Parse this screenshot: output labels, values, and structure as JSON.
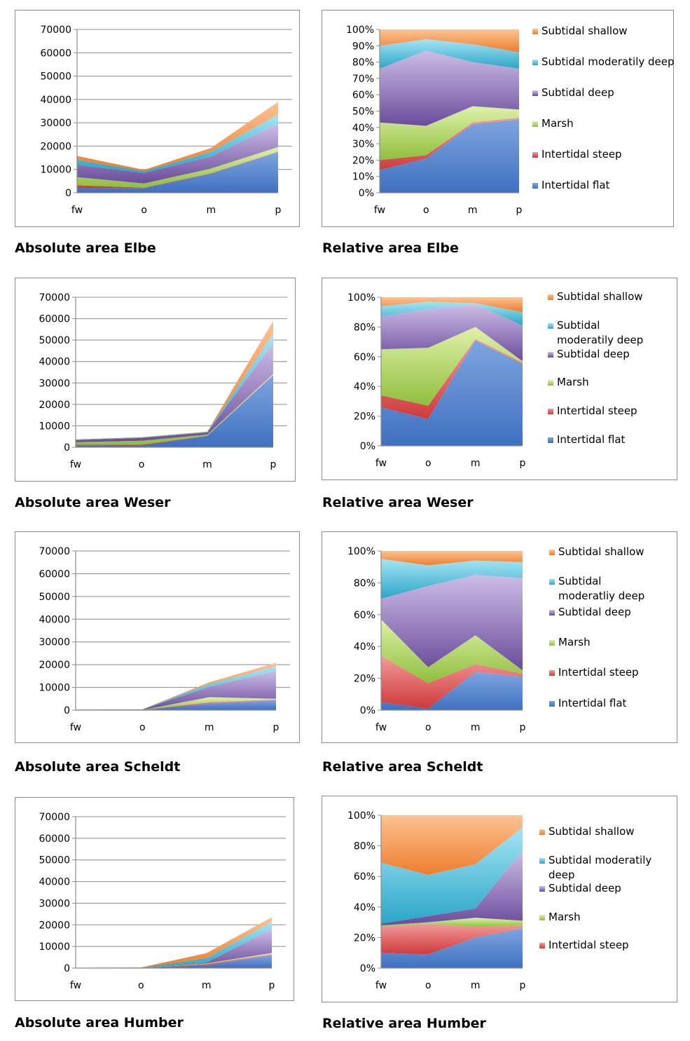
{
  "colors": {
    "Intertidal flat": [
      "#7fa5e0",
      "#3f70c0"
    ],
    "Intertidal steep": [
      "#f29a9a",
      "#cf3a3a"
    ],
    "Marsh": [
      "#dff0a8",
      "#8ebf3d"
    ],
    "Subtidal deep": [
      "#cdbde6",
      "#6a4c9c"
    ],
    "Subtidal moderatily deep": [
      "#a6e4f5",
      "#2ba6c6"
    ],
    "Subtidal shallow": [
      "#fcc393",
      "#ee7d2c"
    ]
  },
  "chart_data": [
    {
      "id": "abs-elbe",
      "type": "area",
      "stacked": true,
      "caption": "Absolute area Elbe",
      "categories": [
        "fw",
        "o",
        "m",
        "p"
      ],
      "ylim": [
        0,
        70000
      ],
      "yticks": [
        "0",
        "10000",
        "20000",
        "30000",
        "40000",
        "50000",
        "60000",
        "70000"
      ],
      "series": [
        {
          "name": "Intertidal flat",
          "values": [
            2100,
            2000,
            8200,
            17500
          ]
        },
        {
          "name": "Intertidal steep",
          "values": [
            1100,
            200,
            200,
            200
          ]
        },
        {
          "name": "Marsh",
          "values": [
            3500,
            1800,
            2000,
            1900
          ]
        },
        {
          "name": "Subtidal deep",
          "values": [
            5300,
            4500,
            5200,
            10000
          ]
        },
        {
          "name": "Subtidal moderatily deep",
          "values": [
            2200,
            700,
            2000,
            4000
          ]
        },
        {
          "name": "Subtidal shallow",
          "values": [
            1600,
            600,
            1600,
            5400
          ]
        }
      ]
    },
    {
      "id": "rel-elbe",
      "type": "area",
      "stacked": true,
      "caption": "Relative area Elbe",
      "categories": [
        "fw",
        "o",
        "m",
        "p"
      ],
      "ylim": [
        0,
        100
      ],
      "yticks": [
        "0%",
        "10%",
        "20%",
        "30%",
        "40%",
        "50%",
        "60%",
        "70%",
        "80%",
        "90%",
        "100%"
      ],
      "legend": [
        "Subtidal shallow",
        "Subtidal moderatily deep",
        "Subtidal deep",
        "Marsh",
        "Intertidal steep",
        "Intertidal flat"
      ],
      "series": [
        {
          "name": "Intertidal flat",
          "values": [
            14,
            21,
            42,
            45
          ]
        },
        {
          "name": "Intertidal steep",
          "values": [
            6,
            2,
            1,
            1
          ]
        },
        {
          "name": "Marsh",
          "values": [
            23,
            18,
            10,
            5
          ]
        },
        {
          "name": "Subtidal deep",
          "values": [
            33,
            46,
            27,
            25
          ]
        },
        {
          "name": "Subtidal moderatily deep",
          "values": [
            14,
            7,
            11,
            10
          ]
        },
        {
          "name": "Subtidal shallow",
          "values": [
            10,
            6,
            9,
            14
          ]
        }
      ]
    },
    {
      "id": "abs-weser",
      "type": "area",
      "stacked": true,
      "caption": "Absolute area Weser",
      "categories": [
        "fw",
        "o",
        "m",
        "p"
      ],
      "ylim": [
        0,
        70000
      ],
      "yticks": [
        "0",
        "10000",
        "20000",
        "30000",
        "40000",
        "50000",
        "60000",
        "70000"
      ],
      "series": [
        {
          "name": "Intertidal flat",
          "values": [
            900,
            800,
            5300,
            33500
          ]
        },
        {
          "name": "Intertidal steep",
          "values": [
            300,
            400,
            100,
            300
          ]
        },
        {
          "name": "Marsh",
          "values": [
            1200,
            1800,
            500,
            400
          ]
        },
        {
          "name": "Subtidal deep",
          "values": [
            900,
            1300,
            1000,
            14500
          ]
        },
        {
          "name": "Subtidal moderatily deep",
          "values": [
            200,
            200,
            150,
            4300
          ]
        },
        {
          "name": "Subtidal shallow",
          "values": [
            200,
            200,
            250,
            6000
          ]
        }
      ]
    },
    {
      "id": "rel-weser",
      "type": "area",
      "stacked": true,
      "caption": "Relative area Weser",
      "categories": [
        "fw",
        "o",
        "m",
        "p"
      ],
      "ylim": [
        0,
        100
      ],
      "yticks": [
        "0%",
        "20%",
        "40%",
        "60%",
        "80%",
        "100%"
      ],
      "legend": [
        "Subtidal shallow",
        "Subtidal\nmoderatily deep",
        "Subtidal deep",
        "Marsh",
        "Intertidal steep",
        "Intertidal flat"
      ],
      "series": [
        {
          "name": "Intertidal flat",
          "values": [
            26,
            18,
            71,
            55
          ]
        },
        {
          "name": "Intertidal steep",
          "values": [
            8,
            9,
            1,
            1
          ]
        },
        {
          "name": "Marsh",
          "values": [
            31,
            39,
            8,
            1
          ]
        },
        {
          "name": "Subtidal deep",
          "values": [
            22,
            26,
            15,
            24
          ]
        },
        {
          "name": "Subtidal moderatily deep",
          "values": [
            7,
            5,
            1,
            9
          ]
        },
        {
          "name": "Subtidal shallow",
          "values": [
            6,
            3,
            4,
            10
          ]
        }
      ]
    },
    {
      "id": "abs-scheldt",
      "type": "area",
      "stacked": true,
      "caption": "Absolute area Scheldt",
      "categories": [
        "fw",
        "o",
        "m",
        "p"
      ],
      "ylim": [
        0,
        70000
      ],
      "yticks": [
        "0",
        "10000",
        "20000",
        "30000",
        "40000",
        "50000",
        "60000",
        "70000"
      ],
      "series": [
        {
          "name": "Intertidal flat",
          "values": [
            15,
            3,
            2900,
            4400
          ]
        },
        {
          "name": "Intertidal steep",
          "values": [
            90,
            55,
            600,
            300
          ]
        },
        {
          "name": "Marsh",
          "values": [
            70,
            30,
            2200,
            300
          ]
        },
        {
          "name": "Subtidal deep",
          "values": [
            40,
            180,
            4600,
            12300
          ]
        },
        {
          "name": "Subtidal moderatily deep",
          "values": [
            75,
            40,
            1200,
            2000
          ]
        },
        {
          "name": "Subtidal shallow",
          "values": [
            15,
            30,
            700,
            1500
          ]
        }
      ]
    },
    {
      "id": "rel-scheldt",
      "type": "area",
      "stacked": true,
      "caption": "Relative area Scheldt",
      "categories": [
        "fw",
        "o",
        "m",
        "p"
      ],
      "ylim": [
        0,
        100
      ],
      "yticks": [
        "0%",
        "20%",
        "40%",
        "60%",
        "80%",
        "100%"
      ],
      "legend": [
        "Subtidal shallow",
        "Subtidal\nmoderatliy deep",
        "Subtidal deep",
        "Marsh",
        "Intertidal steep",
        "Intertidal flat"
      ],
      "series": [
        {
          "name": "Intertidal flat",
          "values": [
            5,
            1,
            24,
            21
          ]
        },
        {
          "name": "Intertidal steep",
          "values": [
            29,
            16,
            5,
            2
          ]
        },
        {
          "name": "Marsh",
          "values": [
            23,
            10,
            18,
            2
          ]
        },
        {
          "name": "Subtidal deep",
          "values": [
            13,
            51,
            38,
            58
          ]
        },
        {
          "name": "Subtidal moderatily deep",
          "values": [
            25,
            13,
            9,
            10
          ]
        },
        {
          "name": "Subtidal shallow",
          "values": [
            5,
            9,
            6,
            7
          ]
        }
      ]
    },
    {
      "id": "abs-humber",
      "type": "area",
      "stacked": true,
      "caption": "Absolute area Humber",
      "categories": [
        "fw",
        "o",
        "m",
        "p"
      ],
      "ylim": [
        0,
        70000
      ],
      "yticks": [
        "0",
        "10000",
        "20000",
        "30000",
        "40000",
        "50000",
        "60000",
        "70000"
      ],
      "series": [
        {
          "name": "Intertidal flat",
          "values": [
            15,
            30,
            1300,
            6000
          ]
        },
        {
          "name": "Intertidal steep",
          "values": [
            30,
            60,
            500,
            500
          ]
        },
        {
          "name": "Marsh",
          "values": [
            3,
            15,
            400,
            500
          ]
        },
        {
          "name": "Subtidal deep",
          "values": [
            3,
            15,
            400,
            11000
          ]
        },
        {
          "name": "Subtidal moderatily deep",
          "values": [
            70,
            80,
            2000,
            3500
          ]
        },
        {
          "name": "Subtidal shallow",
          "values": [
            50,
            120,
            2300,
            2000
          ]
        }
      ]
    },
    {
      "id": "rel-humber",
      "type": "area",
      "stacked": true,
      "caption": "Relative area Humber",
      "categories": [
        "fw",
        "o",
        "m",
        "p"
      ],
      "ylim": [
        0,
        100
      ],
      "yticks": [
        "0%",
        "20%",
        "40%",
        "60%",
        "80%",
        "100%"
      ],
      "legend": [
        "Subtidal shallow",
        "Subtidal moderatily\ndeep",
        "Subtidal deep",
        "Marsh",
        "Intertidal steep"
      ],
      "series": [
        {
          "name": "Intertidal flat",
          "values": [
            10,
            9,
            20,
            26
          ]
        },
        {
          "name": "Intertidal steep",
          "values": [
            17,
            20,
            7,
            2
          ]
        },
        {
          "name": "Marsh",
          "values": [
            1,
            1,
            6,
            3
          ]
        },
        {
          "name": "Subtidal deep",
          "values": [
            1,
            4,
            6,
            46
          ]
        },
        {
          "name": "Subtidal moderatily deep",
          "values": [
            40,
            27,
            29,
            15
          ]
        },
        {
          "name": "Subtidal shallow",
          "values": [
            31,
            39,
            32,
            8
          ]
        }
      ]
    }
  ]
}
